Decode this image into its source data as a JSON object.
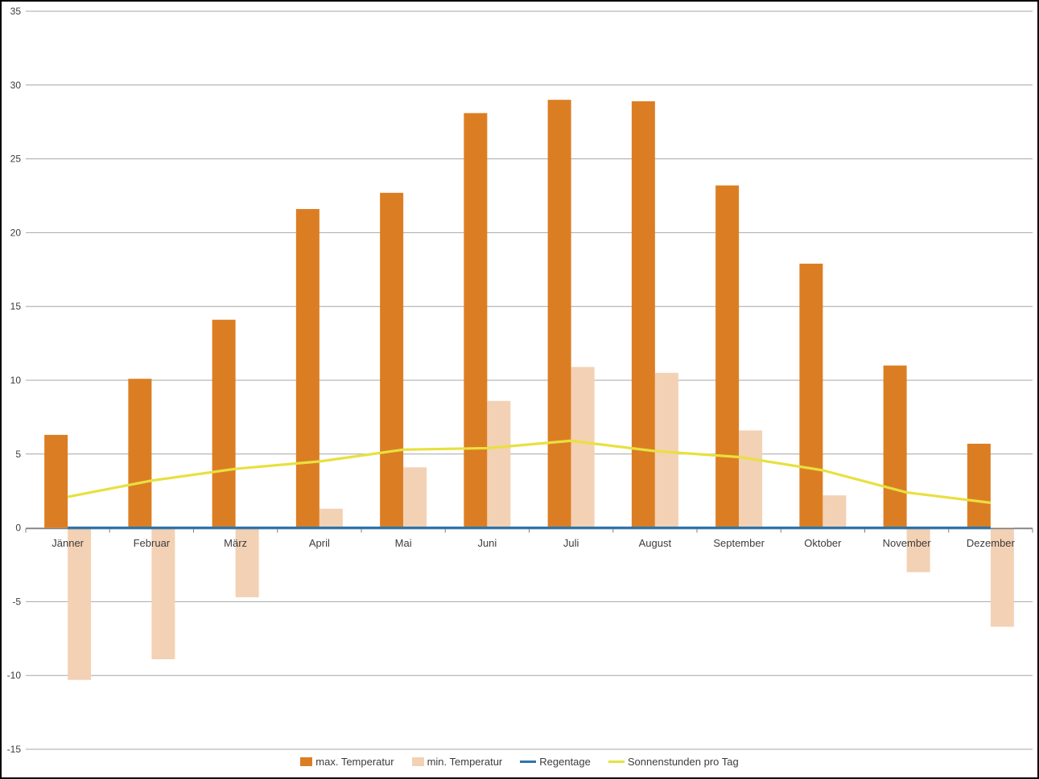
{
  "chart_data": {
    "type": "bar",
    "title": "",
    "categories": [
      "Jänner",
      "Februar",
      "März",
      "April",
      "Mai",
      "Juni",
      "Juli",
      "August",
      "September",
      "Oktober",
      "November",
      "Dezember"
    ],
    "series": [
      {
        "name": "max. Temperatur",
        "kind": "bar",
        "color": "#DB7E23",
        "values": [
          6.3,
          10.1,
          14.1,
          21.6,
          22.7,
          28.1,
          29.0,
          28.9,
          23.2,
          17.9,
          11.0,
          5.7
        ]
      },
      {
        "name": "min. Temperatur",
        "kind": "bar",
        "color": "#F3D1B4",
        "values": [
          -10.3,
          -8.9,
          -4.7,
          1.3,
          4.1,
          8.6,
          10.9,
          10.5,
          6.6,
          2.2,
          -3.0,
          -6.7
        ]
      },
      {
        "name": "Regentage",
        "kind": "line",
        "color": "#2F74A9",
        "values": [
          0,
          0,
          0,
          0,
          0,
          0,
          0,
          0,
          0,
          0,
          0,
          0
        ]
      },
      {
        "name": "Sonnenstunden pro Tag",
        "kind": "line",
        "color": "#E8E040",
        "values": [
          2.1,
          3.2,
          4.0,
          4.5,
          5.3,
          5.4,
          5.9,
          5.2,
          4.8,
          3.9,
          2.4,
          1.7
        ]
      }
    ],
    "xlabel": "",
    "ylabel": "",
    "ylim": [
      -15,
      35
    ],
    "y_ticks": [
      35,
      30,
      25,
      20,
      15,
      10,
      5,
      0,
      -5,
      -10,
      -15
    ],
    "grid": true,
    "legend_position": "bottom"
  },
  "colors": {
    "gridline": "#A6A6A6",
    "axis": "#808080",
    "text": "#3C3C3C",
    "background": "#FFFFFF",
    "border": "#000000"
  }
}
